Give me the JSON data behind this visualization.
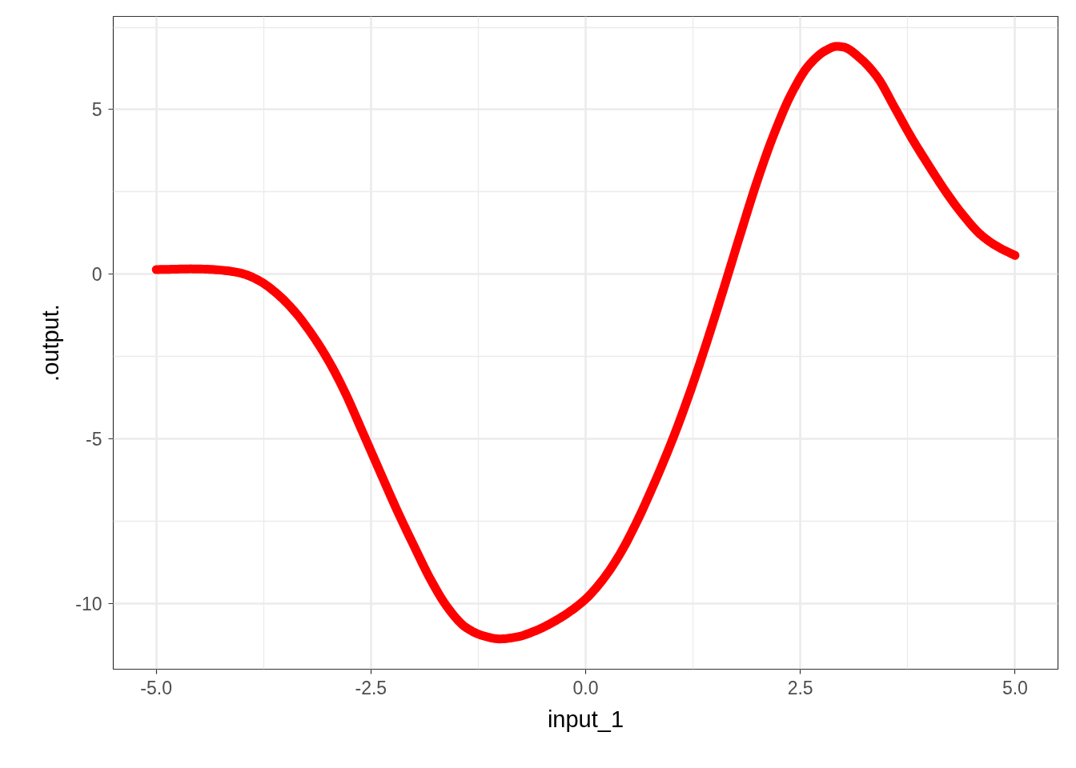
{
  "chart_data": {
    "type": "line",
    "xlabel": "input_1",
    "ylabel": ".output.",
    "x": [
      -5.0,
      -4.8,
      -4.6,
      -4.4,
      -4.2,
      -4.0,
      -3.8,
      -3.6,
      -3.4,
      -3.2,
      -3.0,
      -2.8,
      -2.6,
      -2.4,
      -2.2,
      -2.0,
      -1.8,
      -1.6,
      -1.4,
      -1.2,
      -1.0,
      -0.8,
      -0.6,
      -0.4,
      -0.2,
      0.0,
      0.2,
      0.4,
      0.6,
      0.8,
      1.0,
      1.2,
      1.4,
      1.6,
      1.8,
      2.0,
      2.2,
      2.4,
      2.6,
      2.8,
      2.92,
      3.0,
      3.2,
      3.4,
      3.6,
      3.8,
      4.0,
      4.2,
      4.4,
      4.6,
      4.8,
      5.0
    ],
    "series": [
      {
        "color": "#ff0000",
        "values": [
          0.14,
          0.15,
          0.16,
          0.15,
          0.11,
          0.02,
          -0.2,
          -0.58,
          -1.1,
          -1.78,
          -2.6,
          -3.6,
          -4.78,
          -5.97,
          -7.15,
          -8.25,
          -9.3,
          -10.15,
          -10.72,
          -10.98,
          -11.08,
          -11.02,
          -10.85,
          -10.6,
          -10.28,
          -9.87,
          -9.28,
          -8.5,
          -7.5,
          -6.35,
          -5.1,
          -3.7,
          -2.15,
          -0.5,
          1.2,
          2.85,
          4.3,
          5.5,
          6.35,
          6.8,
          6.92,
          6.9,
          6.55,
          5.97,
          5.05,
          4.12,
          3.28,
          2.48,
          1.78,
          1.2,
          0.83,
          0.57
        ]
      }
    ],
    "xlim": [
      -5.5,
      5.5
    ],
    "ylim": [
      -12,
      7.83
    ],
    "xticks": [
      {
        "value": -5,
        "label": "-5.0"
      },
      {
        "value": -2.5,
        "label": "-2.5"
      },
      {
        "value": 0,
        "label": "0.0"
      },
      {
        "value": 2.5,
        "label": "2.5"
      },
      {
        "value": 5,
        "label": "5.0"
      }
    ],
    "yticks": [
      -10,
      -5,
      0,
      5
    ],
    "grid": true,
    "marker": "none",
    "line_style": "solid"
  }
}
